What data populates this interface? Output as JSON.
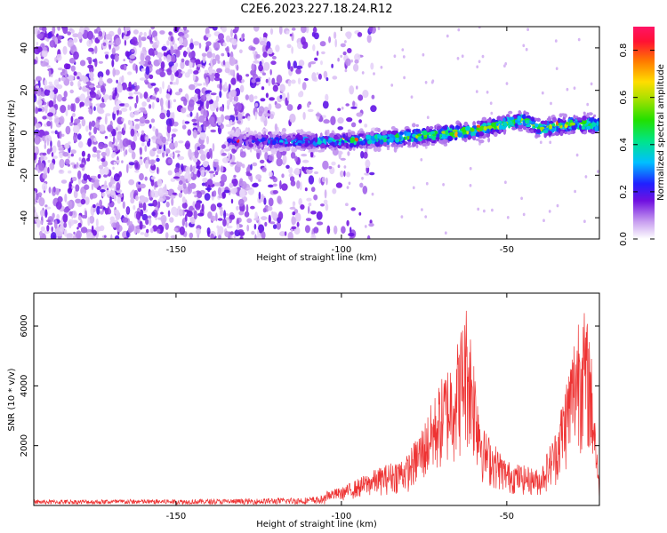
{
  "title": "C2E6.2023.227.18.24.R12",
  "chart_data": [
    {
      "type": "heatmap",
      "xlabel": "Height of straight line (km)",
      "ylabel": "Frequency (Hz)",
      "xlim": [
        -193,
        -22
      ],
      "ylim": [
        -50,
        50
      ],
      "xticks": [
        -150,
        -100,
        -50
      ],
      "yticks": [
        -40,
        -20,
        0,
        20,
        40
      ],
      "grid": false,
      "colorbar": {
        "label": "Normalized spectral amplitude",
        "range": [
          0,
          0.9
        ],
        "ticks": [
          0.0,
          0.2,
          0.4,
          0.6,
          0.8
        ]
      },
      "ridge": {
        "description_points": [
          {
            "x": -133,
            "y": -4
          },
          {
            "x": -120,
            "y": -4
          },
          {
            "x": -100,
            "y": -4
          },
          {
            "x": -80,
            "y": -2
          },
          {
            "x": -60,
            "y": 1
          },
          {
            "x": -45,
            "y": 6
          },
          {
            "x": -40,
            "y": 2
          },
          {
            "x": -30,
            "y": 4
          },
          {
            "x": -22,
            "y": 4
          }
        ],
        "peak_amplitude": 0.85
      },
      "noise_extent_x": [
        -193,
        -100
      ]
    },
    {
      "type": "line",
      "xlabel": "Height of straight line (km)",
      "ylabel": "SNR (10 * v/v)",
      "xlim": [
        -193,
        -22
      ],
      "ylim": [
        0,
        7100
      ],
      "xticks": [
        -150,
        -100,
        -50
      ],
      "yticks": [
        2000,
        4000,
        6000
      ],
      "grid": false,
      "series": [
        {
          "color": "#ee3333",
          "envelope": [
            {
              "x": -193,
              "y": 250
            },
            {
              "x": -130,
              "y": 300
            },
            {
              "x": -110,
              "y": 400
            },
            {
              "x": -100,
              "y": 600
            },
            {
              "x": -90,
              "y": 1200
            },
            {
              "x": -80,
              "y": 1700
            },
            {
              "x": -75,
              "y": 2800
            },
            {
              "x": -70,
              "y": 4200
            },
            {
              "x": -65,
              "y": 5500
            },
            {
              "x": -62,
              "y": 6900
            },
            {
              "x": -60,
              "y": 5200
            },
            {
              "x": -57,
              "y": 2600
            },
            {
              "x": -50,
              "y": 1500
            },
            {
              "x": -40,
              "y": 1200
            },
            {
              "x": -35,
              "y": 2600
            },
            {
              "x": -30,
              "y": 5500
            },
            {
              "x": -28,
              "y": 7000
            },
            {
              "x": -25,
              "y": 6000
            },
            {
              "x": -23,
              "y": 2800
            },
            {
              "x": -22,
              "y": 400
            }
          ]
        }
      ]
    }
  ]
}
